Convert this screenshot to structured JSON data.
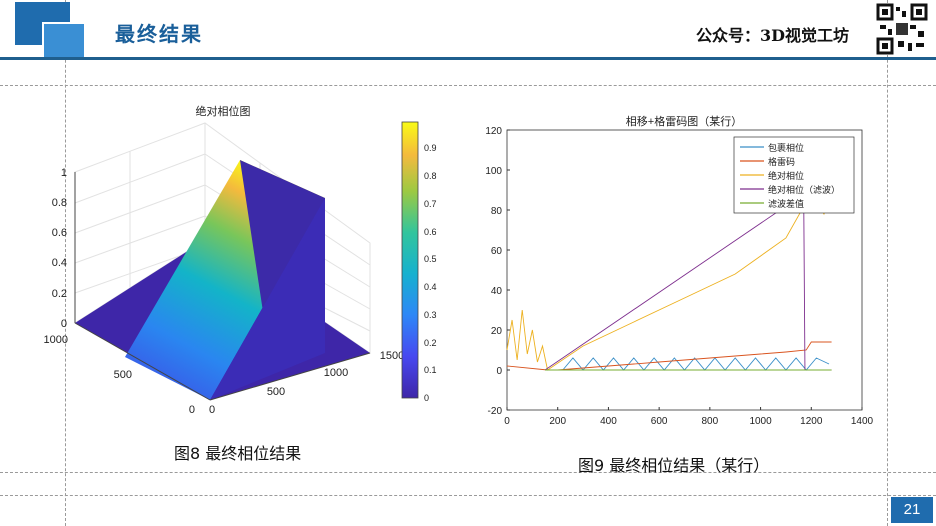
{
  "slide": {
    "title": "最终结果",
    "brand": "公众号：3D视觉工坊",
    "page_number": "21"
  },
  "colors": {
    "accent_dark": "#1f5f8e",
    "accent_light": "#3a8fd4",
    "title_blue": "#1a5f9a"
  },
  "icons": [
    "qr-code-icon",
    "logo-squares-icon"
  ],
  "figure8": {
    "caption": "图8 最终相位结果",
    "chart_title": "绝对相位图",
    "z_ticks": [
      "0",
      "0.2",
      "0.4",
      "0.6",
      "0.8",
      "1"
    ],
    "y_ticks": [
      "0",
      "500",
      "1000"
    ],
    "x_ticks": [
      "0",
      "500",
      "1000",
      "1500"
    ],
    "colorbar_ticks": [
      "0",
      "0.1",
      "0.2",
      "0.3",
      "0.4",
      "0.5",
      "0.6",
      "0.7",
      "0.8",
      "0.9"
    ]
  },
  "figure9": {
    "caption": "图9 最终相位结果（某行）"
  },
  "chart_data": [
    {
      "type": "surface",
      "title": "绝对相位图",
      "colormap": "parula",
      "x_range": [
        0,
        1500
      ],
      "y_range": [
        0,
        1000
      ],
      "z_range": [
        0,
        1
      ],
      "colorbar_range": [
        0,
        1
      ],
      "grid": true
    },
    {
      "type": "line",
      "title": "相移+格雷码图（某行）",
      "xlim": [
        0,
        1400
      ],
      "ylim": [
        -20,
        120
      ],
      "x_ticks": [
        0,
        200,
        400,
        600,
        800,
        1000,
        1200,
        1400
      ],
      "y_ticks": [
        -20,
        0,
        20,
        40,
        60,
        80,
        100,
        120
      ],
      "legend_position": "top-right",
      "series": [
        {
          "name": "包裹相位",
          "color": "#3a8fc8",
          "x": [
            220,
            260,
            300,
            340,
            380,
            420,
            460,
            500,
            540,
            580,
            620,
            660,
            700,
            740,
            780,
            820,
            860,
            900,
            940,
            980,
            1020,
            1060,
            1100,
            1140,
            1180,
            1220,
            1270
          ],
          "y": [
            0,
            6,
            0,
            6,
            0,
            6,
            0,
            6,
            0,
            6,
            0,
            6,
            0,
            6,
            0,
            6,
            0,
            6,
            0,
            6,
            0,
            6,
            0,
            6,
            0,
            6,
            3
          ]
        },
        {
          "name": "格雷码",
          "color": "#d9541f",
          "x": [
            0,
            160,
            200,
            300,
            400,
            500,
            600,
            700,
            800,
            900,
            1000,
            1100,
            1180,
            1200,
            1280
          ],
          "y": [
            2,
            0,
            0,
            1,
            2,
            3,
            4,
            5,
            6,
            7,
            8,
            9,
            10,
            14,
            14
          ]
        },
        {
          "name": "绝对相位",
          "color": "#edb120",
          "x": [
            0,
            20,
            40,
            60,
            80,
            100,
            120,
            140,
            160,
            300,
            500,
            700,
            900,
            1100,
            1180,
            1200,
            1250,
            1270
          ],
          "y": [
            10,
            25,
            5,
            30,
            8,
            20,
            4,
            12,
            0,
            12,
            24,
            36,
            48,
            66,
            84,
            90,
            78,
            85
          ]
        },
        {
          "name": "绝对相位（滤波）",
          "color": "#7e2f8e",
          "x": [
            150,
            1170,
            1175,
            1200,
            1280
          ],
          "y": [
            0,
            88,
            0,
            0,
            0
          ]
        },
        {
          "name": "滤波差值",
          "color": "#77ac30",
          "x": [
            150,
            1280
          ],
          "y": [
            0,
            0
          ]
        }
      ]
    }
  ]
}
